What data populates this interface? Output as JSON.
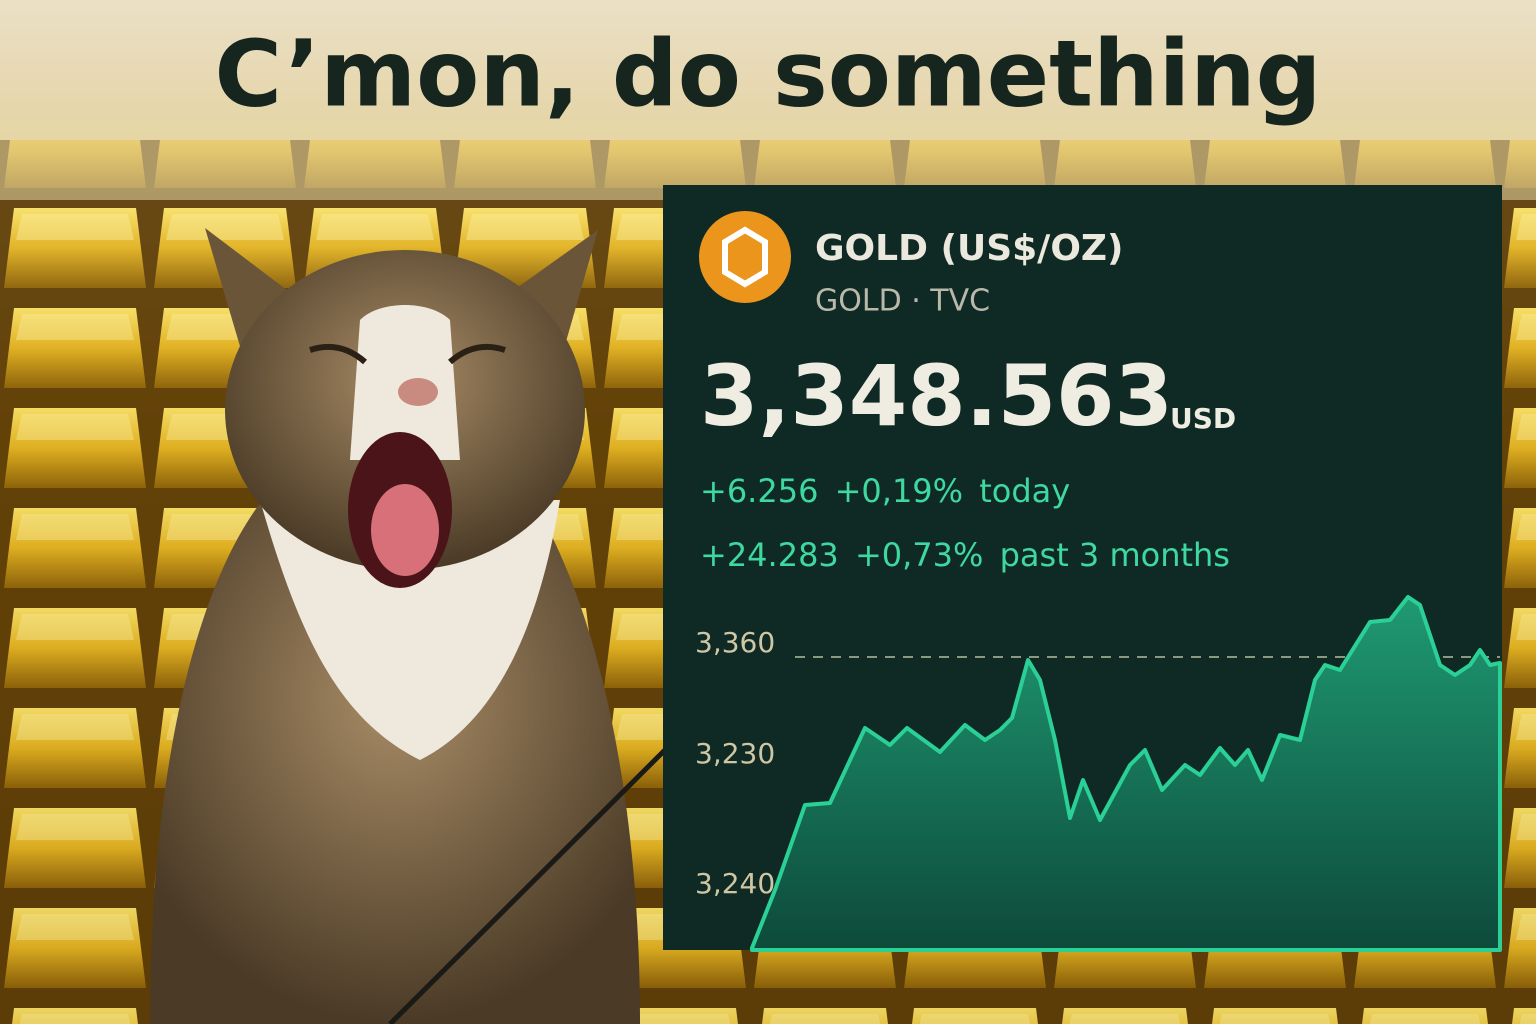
{
  "caption": "C’mon, do something",
  "widget": {
    "name": "GOLD (US$/OZ)",
    "symbol": "GOLD · TVC",
    "price": "3,348.563",
    "currency": "USD",
    "change_today": {
      "amount": "+6.256",
      "percent": "+0,19%",
      "period": "today"
    },
    "change_3m": {
      "amount": "+24.283",
      "percent": "+0,73%",
      "period": "past 3 months"
    },
    "axis_labels": [
      "3,360",
      "3,230",
      "3,240"
    ]
  }
}
